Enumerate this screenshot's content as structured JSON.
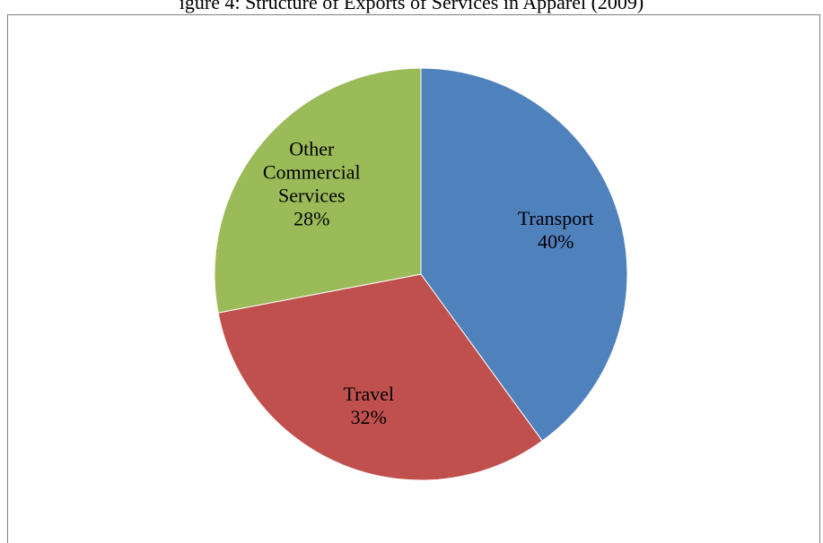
{
  "caption": "igure 4: Structure of Exports of Services in Apparel (2009)",
  "chart_data": {
    "type": "pie",
    "title": "",
    "start_angle_deg": 0,
    "direction": "clockwise",
    "slices": [
      {
        "label_lines": [
          "Transport"
        ],
        "percent_label": "40%",
        "value": 40,
        "color": "#4F81BD"
      },
      {
        "label_lines": [
          "Travel"
        ],
        "percent_label": "32%",
        "value": 32,
        "color": "#C0504D"
      },
      {
        "label_lines": [
          "Other",
          "Commercial",
          "Services"
        ],
        "percent_label": "28%",
        "value": 28,
        "color": "#9BBB59"
      }
    ]
  }
}
